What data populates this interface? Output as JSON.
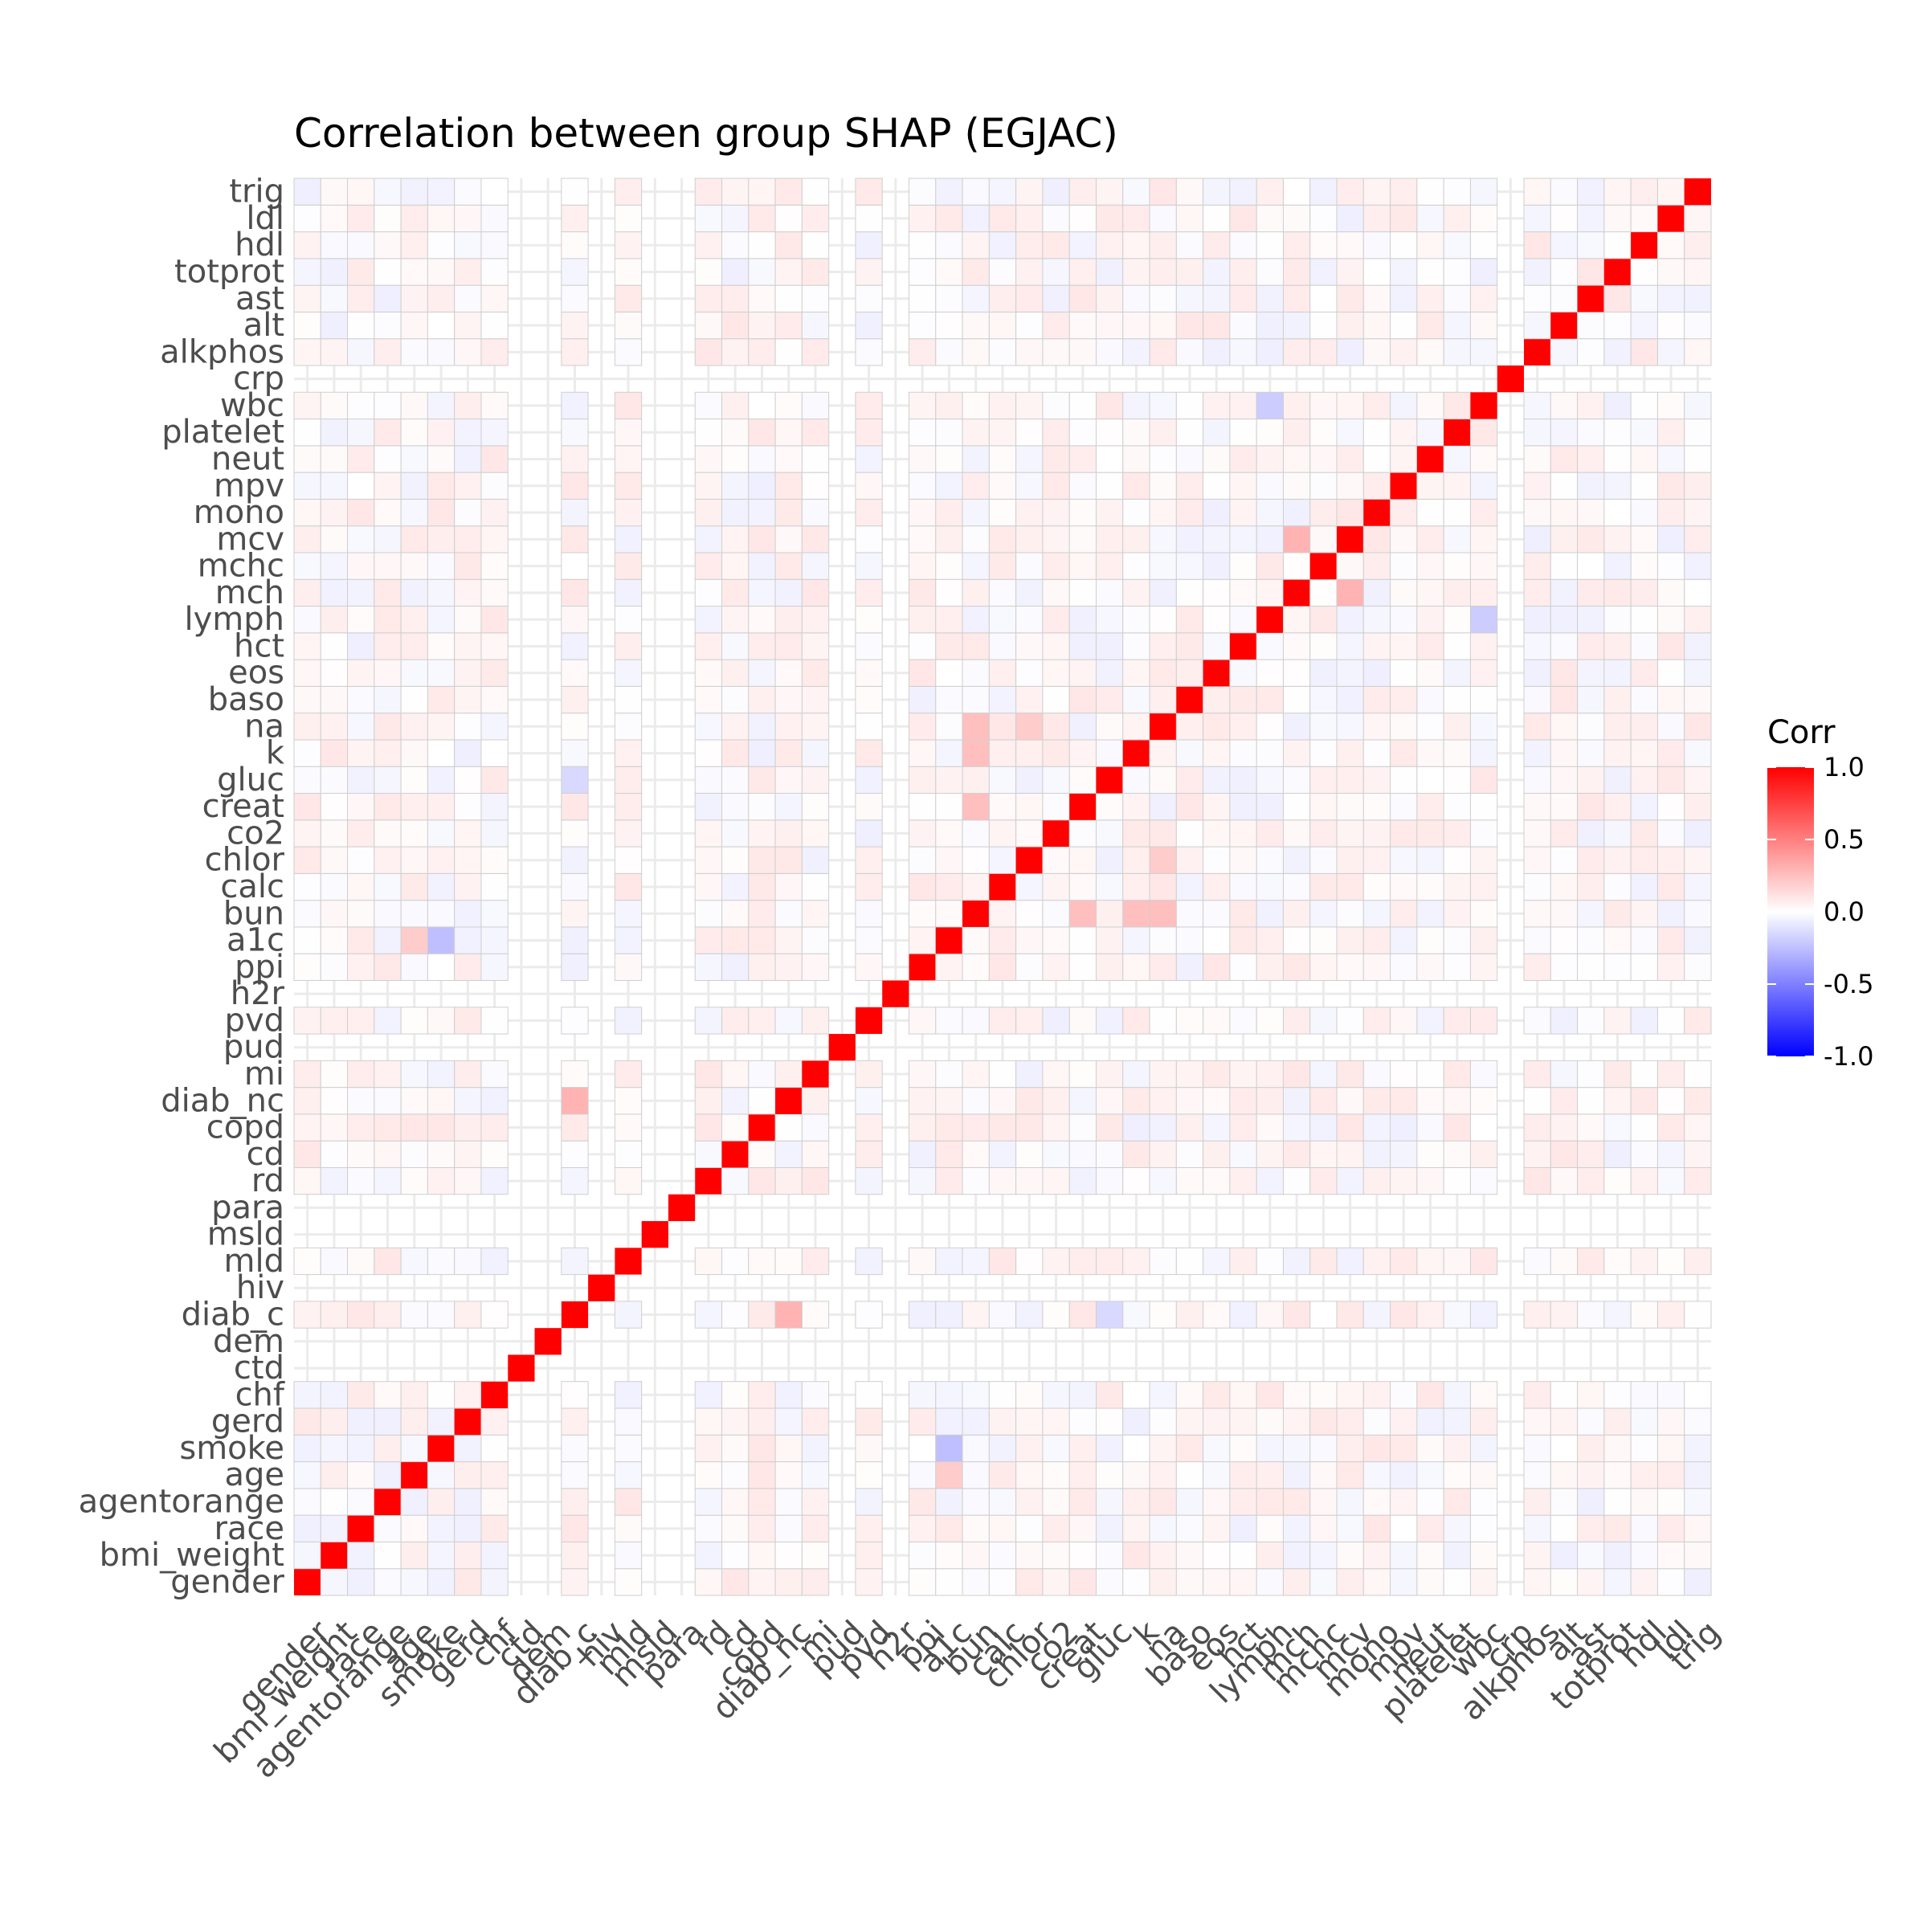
{
  "chart_data": {
    "type": "heatmap",
    "title": "Correlation between group SHAP (EGJAC)",
    "variables": [
      "gender",
      "bmi_weight",
      "race",
      "agentorange",
      "age",
      "smoke",
      "gerd",
      "chf",
      "ctd",
      "dem",
      "diab_c",
      "hiv",
      "mld",
      "msld",
      "para",
      "rd",
      "cd",
      "copd",
      "diab_nc",
      "mi",
      "pud",
      "pvd",
      "h2r",
      "ppi",
      "a1c",
      "bun",
      "calc",
      "chlor",
      "co2",
      "creat",
      "gluc",
      "k",
      "na",
      "baso",
      "eos",
      "hct",
      "lymph",
      "mch",
      "mchc",
      "mcv",
      "mono",
      "mpv",
      "neut",
      "platelet",
      "wbc",
      "crp",
      "alkphos",
      "alt",
      "ast",
      "totprot",
      "hdl",
      "ldl",
      "trig"
    ],
    "constant_variables": [
      "ctd",
      "dem",
      "hiv",
      "msld",
      "para",
      "pud",
      "h2r",
      "crp"
    ],
    "diagonal_value": 1.0,
    "off_diagonal_range": [
      -0.25,
      0.3
    ],
    "notable_correlations": [
      {
        "x": "a1c",
        "y": "smoke",
        "value": -0.25
      },
      {
        "x": "diab_c",
        "y": "diab_nc",
        "value": 0.3
      },
      {
        "x": "wbc",
        "y": "lymph",
        "value": -0.2
      },
      {
        "x": "mcv",
        "y": "mch",
        "value": 0.3
      },
      {
        "x": "bun",
        "y": "creat",
        "value": 0.25
      },
      {
        "x": "bun",
        "y": "k",
        "value": 0.25
      },
      {
        "x": "bun",
        "y": "na",
        "value": 0.25
      },
      {
        "x": "chlor",
        "y": "na",
        "value": 0.2
      },
      {
        "x": "a1c",
        "y": "age",
        "value": 0.2
      },
      {
        "x": "gluc",
        "y": "diab_c",
        "value": -0.15
      }
    ],
    "legend": {
      "title": "Corr",
      "ticks": [
        "1.0",
        "0.5",
        "0.0",
        "-0.5",
        "-1.0"
      ],
      "position": "right",
      "colors": {
        "low": "#0000ff",
        "mid": "#ffffff",
        "high": "#ff0000"
      },
      "range": [
        -1,
        1
      ]
    },
    "grid": true,
    "diagonal_color": "#ff0000"
  }
}
